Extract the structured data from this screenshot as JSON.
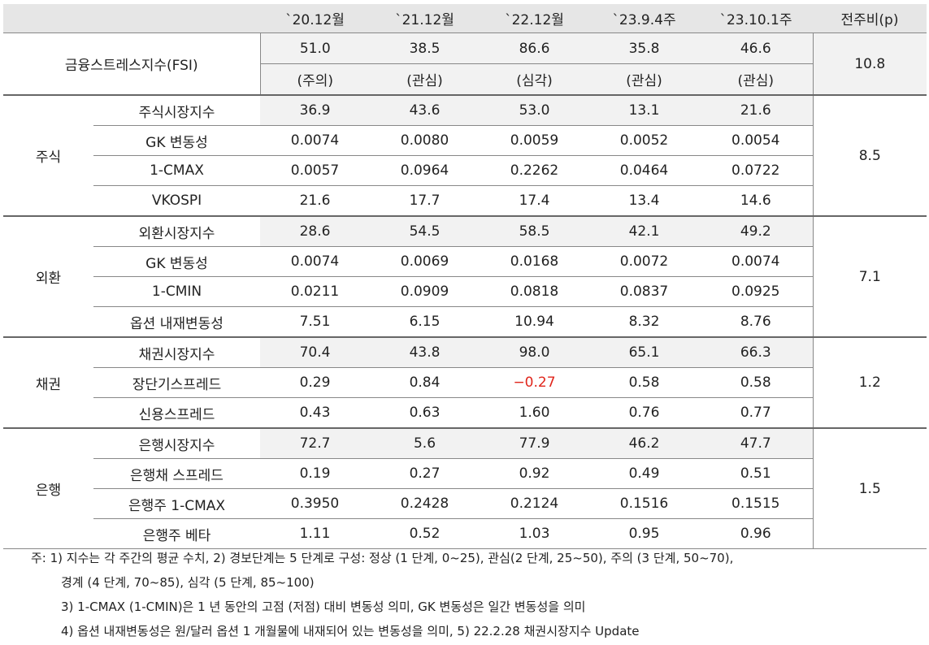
{
  "header": {
    "columns": [
      "`20.12월",
      "`21.12월",
      "`22.12월",
      "`23.9.4주",
      "`23.10.1주",
      "전주비(p)"
    ]
  },
  "fsi": {
    "label": "금융스트레스지수(FSI)",
    "values": [
      "51.0",
      "38.5",
      "86.6",
      "35.8",
      "46.6"
    ],
    "grades": [
      "(주의)",
      "(관심)",
      "(심각)",
      "(관심)",
      "(관심)"
    ],
    "change": "10.8"
  },
  "groups": [
    {
      "label": "주식",
      "change": "8.5",
      "rows": [
        {
          "label": "주식시장지수",
          "values": [
            "36.9",
            "43.6",
            "53.0",
            "13.1",
            "21.6"
          ]
        },
        {
          "label": "GK 변동성",
          "values": [
            "0.0074",
            "0.0080",
            "0.0059",
            "0.0052",
            "0.0054"
          ]
        },
        {
          "label": "1-CMAX",
          "values": [
            "0.0057",
            "0.0964",
            "0.2262",
            "0.0464",
            "0.0722"
          ]
        },
        {
          "label": "VKOSPI",
          "values": [
            "21.6",
            "17.7",
            "17.4",
            "13.4",
            "14.6"
          ]
        }
      ]
    },
    {
      "label": "외환",
      "change": "7.1",
      "rows": [
        {
          "label": "외환시장지수",
          "values": [
            "28.6",
            "54.5",
            "58.5",
            "42.1",
            "49.2"
          ]
        },
        {
          "label": "GK 변동성",
          "values": [
            "0.0074",
            "0.0069",
            "0.0168",
            "0.0072",
            "0.0074"
          ]
        },
        {
          "label": "1-CMIN",
          "values": [
            "0.0211",
            "0.0909",
            "0.0818",
            "0.0837",
            "0.0925"
          ]
        },
        {
          "label": "옵션 내재변동성",
          "values": [
            "7.51",
            "6.15",
            "10.94",
            "8.32",
            "8.76"
          ]
        }
      ]
    },
    {
      "label": "채권",
      "change": "1.2",
      "rows": [
        {
          "label": "채권시장지수",
          "values": [
            "70.4",
            "43.8",
            "98.0",
            "65.1",
            "66.3"
          ]
        },
        {
          "label": "장단기스프레드",
          "values": [
            "0.29",
            "0.84",
            "−0.27",
            "0.58",
            "0.58"
          ]
        },
        {
          "label": "신용스프레드",
          "values": [
            "0.43",
            "0.63",
            "1.60",
            "0.76",
            "0.77"
          ]
        }
      ]
    },
    {
      "label": "은행",
      "change": "1.5",
      "rows": [
        {
          "label": "은행시장지수",
          "values": [
            "72.7",
            "5.6",
            "77.9",
            "46.2",
            "47.7"
          ]
        },
        {
          "label": "은행채 스프레드",
          "values": [
            "0.19",
            "0.27",
            "0.92",
            "0.49",
            "0.51"
          ]
        },
        {
          "label": "은행주 1-CMAX",
          "values": [
            "0.3950",
            "0.2428",
            "0.2124",
            "0.1516",
            "0.1515"
          ]
        },
        {
          "label": "은행주 베타",
          "values": [
            "1.11",
            "0.52",
            "1.03",
            "0.95",
            "0.96"
          ]
        }
      ]
    }
  ],
  "notes": [
    "주: 1) 지수는 각 주간의 평균 수치, 2) 경보단계는 5 단계로 구성: 정상 (1 단계, 0~25), 관심(2 단계, 25~50), 주의 (3 단계, 50~70),",
    "경계 (4 단계, 70~85), 심각 (5 단계, 85~100)",
    "3) 1-CMAX (1-CMIN)은 1 년 동안의 고점 (저점) 대비 변동성 의미, GK 변동성은 일간 변동성을 의미",
    "4) 옵션 내재변동성은 원/달러 옵션 1 개월물에 내재되어 있는 변동성을 의미, 5) 22.2.28 채권시장지수 Update"
  ]
}
